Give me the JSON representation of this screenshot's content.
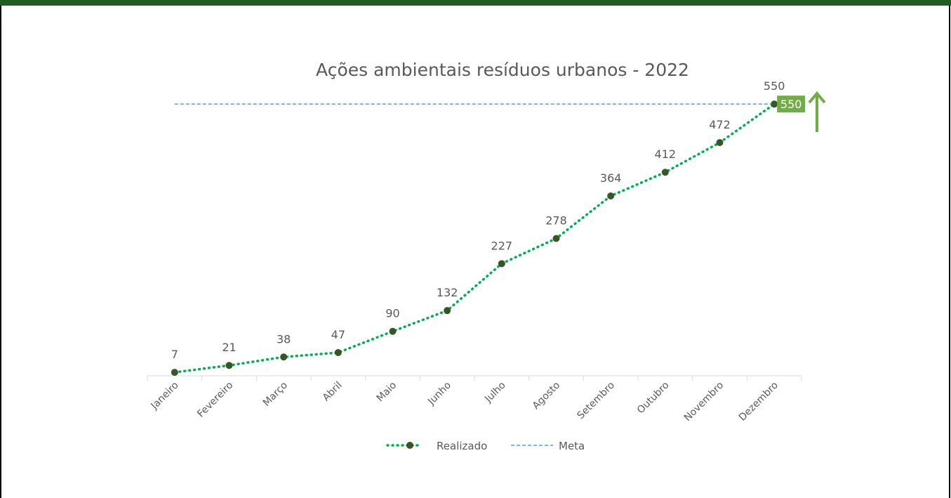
{
  "chart_data": {
    "type": "line",
    "title": "Ações ambientais resíduos urbanos - 2022",
    "categories": [
      "Janeiro",
      "Fevereiro",
      "Março",
      "Abril",
      "Maio",
      "Junho",
      "Julho",
      "Agosto",
      "Setembro",
      "Outubro",
      "Novembro",
      "Dezembro"
    ],
    "series": [
      {
        "name": "Realizado",
        "color": "#00b050",
        "marker_color": "#375623",
        "values": [
          7,
          21,
          38,
          47,
          90,
          132,
          227,
          278,
          364,
          412,
          472,
          550
        ]
      },
      {
        "name": "Meta",
        "color": "#5b9bd5",
        "values": [
          550,
          550,
          550,
          550,
          550,
          550,
          550,
          550,
          550,
          550,
          550,
          550
        ]
      }
    ],
    "ylim": [
      0,
      600
    ],
    "legend": "bottom"
  }
}
